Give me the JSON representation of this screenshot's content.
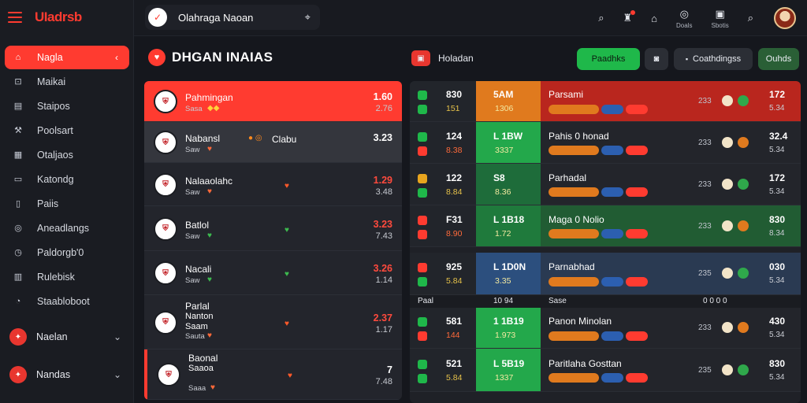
{
  "brand": {
    "logo": "UIadrsb"
  },
  "sidebar": {
    "items": [
      {
        "label": "Nagla",
        "icon": "home-icon",
        "active": true
      },
      {
        "label": "Maikai",
        "icon": "tag-icon"
      },
      {
        "label": "Staipos",
        "icon": "folder-icon"
      },
      {
        "label": "Poolsart",
        "icon": "wrench-icon"
      },
      {
        "label": "Otaljaos",
        "icon": "grid-icon"
      },
      {
        "label": "Katondg",
        "icon": "card-icon"
      },
      {
        "label": "Paiis",
        "icon": "file-icon"
      },
      {
        "label": "Aneadlangs",
        "icon": "globe-icon"
      },
      {
        "label": "Paldorgb'0",
        "icon": "clock-icon"
      },
      {
        "label": "Rulebisk",
        "icon": "chart-icon"
      },
      {
        "label": "Staabloboot",
        "icon": "bell-icon"
      }
    ],
    "groups": [
      {
        "label": "Naelan"
      },
      {
        "label": "Nandas"
      }
    ]
  },
  "topbar": {
    "search_text": "Olahraga Naoan",
    "icons": [
      {
        "name": "search-icon",
        "glyph": "⌕"
      },
      {
        "name": "trophy-icon",
        "glyph": "♜",
        "badge": true
      },
      {
        "name": "share-icon",
        "glyph": "⌂"
      },
      {
        "name": "stats-icon",
        "glyph": "◎",
        "caption": "Doals"
      },
      {
        "name": "calendar-icon",
        "glyph": "▣",
        "caption": "Sbotis"
      },
      {
        "name": "search-icon-2",
        "glyph": "⌕"
      }
    ]
  },
  "section": {
    "left_title": "DHGAN INAIAS",
    "mid_title": "Holadan",
    "pills": [
      {
        "label": "Paadhks",
        "bg": "#1fb84a",
        "color": "#0c1b10"
      },
      {
        "label": "Coathdingss",
        "bg": "#2b2e35",
        "color": "#e9ecf2"
      },
      {
        "label": "Ouhds",
        "bg": "#2a5f36",
        "color": "#e9ecf2"
      }
    ]
  },
  "left_rows": [
    {
      "team": "Pahmingan",
      "sub": "Sasa",
      "odd1": "1.60",
      "odd2": "2.76",
      "odd1_color": "#ffffff",
      "bg": "#ff3b30"
    },
    {
      "team": "Nabansl",
      "sub": "Saw",
      "odd1": "3.23",
      "odd2": "",
      "odd1_color": "#ffffff",
      "mid_label": "Clabu"
    },
    {
      "team": "Nalaaolahc",
      "sub": "Saw",
      "odd1": "1.29",
      "odd2": "3.48",
      "odd1_color": "#ff4a3d"
    },
    {
      "team": "Batlol",
      "sub": "Saw",
      "odd1": "3.23",
      "odd2": "7.43",
      "odd1_color": "#ff4a3d"
    },
    {
      "team": "Nacali",
      "sub": "Saw",
      "odd1": "3.26",
      "odd2": "1.14",
      "odd1_color": "#ff4a3d"
    },
    {
      "team": "Parlal",
      "sub2": "Nanton",
      "sub3": "Saam",
      "sub": "Sauta",
      "odd1": "2.37",
      "odd2": "1.17",
      "odd1_color": "#ff4a3d"
    },
    {
      "team": "Baonal",
      "sub2": "Saaoa",
      "sub": "Saaa",
      "odd1": "7",
      "odd2": "7.48",
      "odd1_color": "#ffffff"
    }
  ],
  "right_rows": [
    {
      "a1": "830",
      "a2": "151",
      "b1": "5AM",
      "b2": "1306",
      "title": "Parsami",
      "v1": "172",
      "v2": "5.34",
      "m": "233",
      "b_bg": "#e07a1e",
      "c_bg": "#b9261e",
      "sq": "#1fb84a"
    },
    {
      "a1": "124",
      "a2": "8.38",
      "b1": "L 1BW",
      "b2": "3337",
      "title": "Pahis 0 honad",
      "v1": "32.4",
      "v2": "5.34",
      "m": "233",
      "b_bg": "#23a84b",
      "c_bg": "#23252b",
      "sq": "#1fb84a"
    },
    {
      "a1": "122",
      "a2": "8.84",
      "b1": "S8",
      "b2": "8.36",
      "title": "Parhadal",
      "v1": "172",
      "v2": "5.34",
      "m": "233",
      "b_bg": "#1e6c3a",
      "c_bg": "#23252b",
      "sq": "#e8a51e"
    },
    {
      "a1": "F31",
      "a2": "8.90",
      "b1": "L 1B18",
      "b2": "1.72",
      "title": "Maga 0 Nolio",
      "v1": "830",
      "v2": "8.34",
      "m": "233",
      "b_bg": "#1f7a3c",
      "c_bg": "#215c33",
      "sq": "#ff3b30"
    },
    {
      "a1": "925",
      "a2": "5.84",
      "b1": "L 1D0N",
      "b2": "3.35",
      "title": "Parnabhad",
      "v1": "030",
      "v2": "5.34",
      "m": "235",
      "b_bg": "#2c4f7e",
      "c_bg": "#2a3a52",
      "sq": "#ff3b30"
    },
    {
      "a1": "581",
      "a2": "144",
      "b1": "1 1B19",
      "b2": "1.973",
      "title": "Panon Minolan",
      "v1": "430",
      "v2": "5.34",
      "m": "233",
      "b_bg": "#23a84b",
      "c_bg": "#23252b",
      "sq": "#1fb84a"
    },
    {
      "a1": "521",
      "a2": "5.84",
      "b1": "L 5B19",
      "b2": "1337",
      "title": "Paritlaha Gosttan",
      "v1": "830",
      "v2": "5.34",
      "m": "235",
      "b_bg": "#23a84b",
      "c_bg": "#23252b",
      "sq": "#1fb84a"
    }
  ],
  "divider_row": {
    "left": "Paal",
    "mid": "10 94",
    "right": "Sase",
    "tail": "0 0 0 0"
  }
}
